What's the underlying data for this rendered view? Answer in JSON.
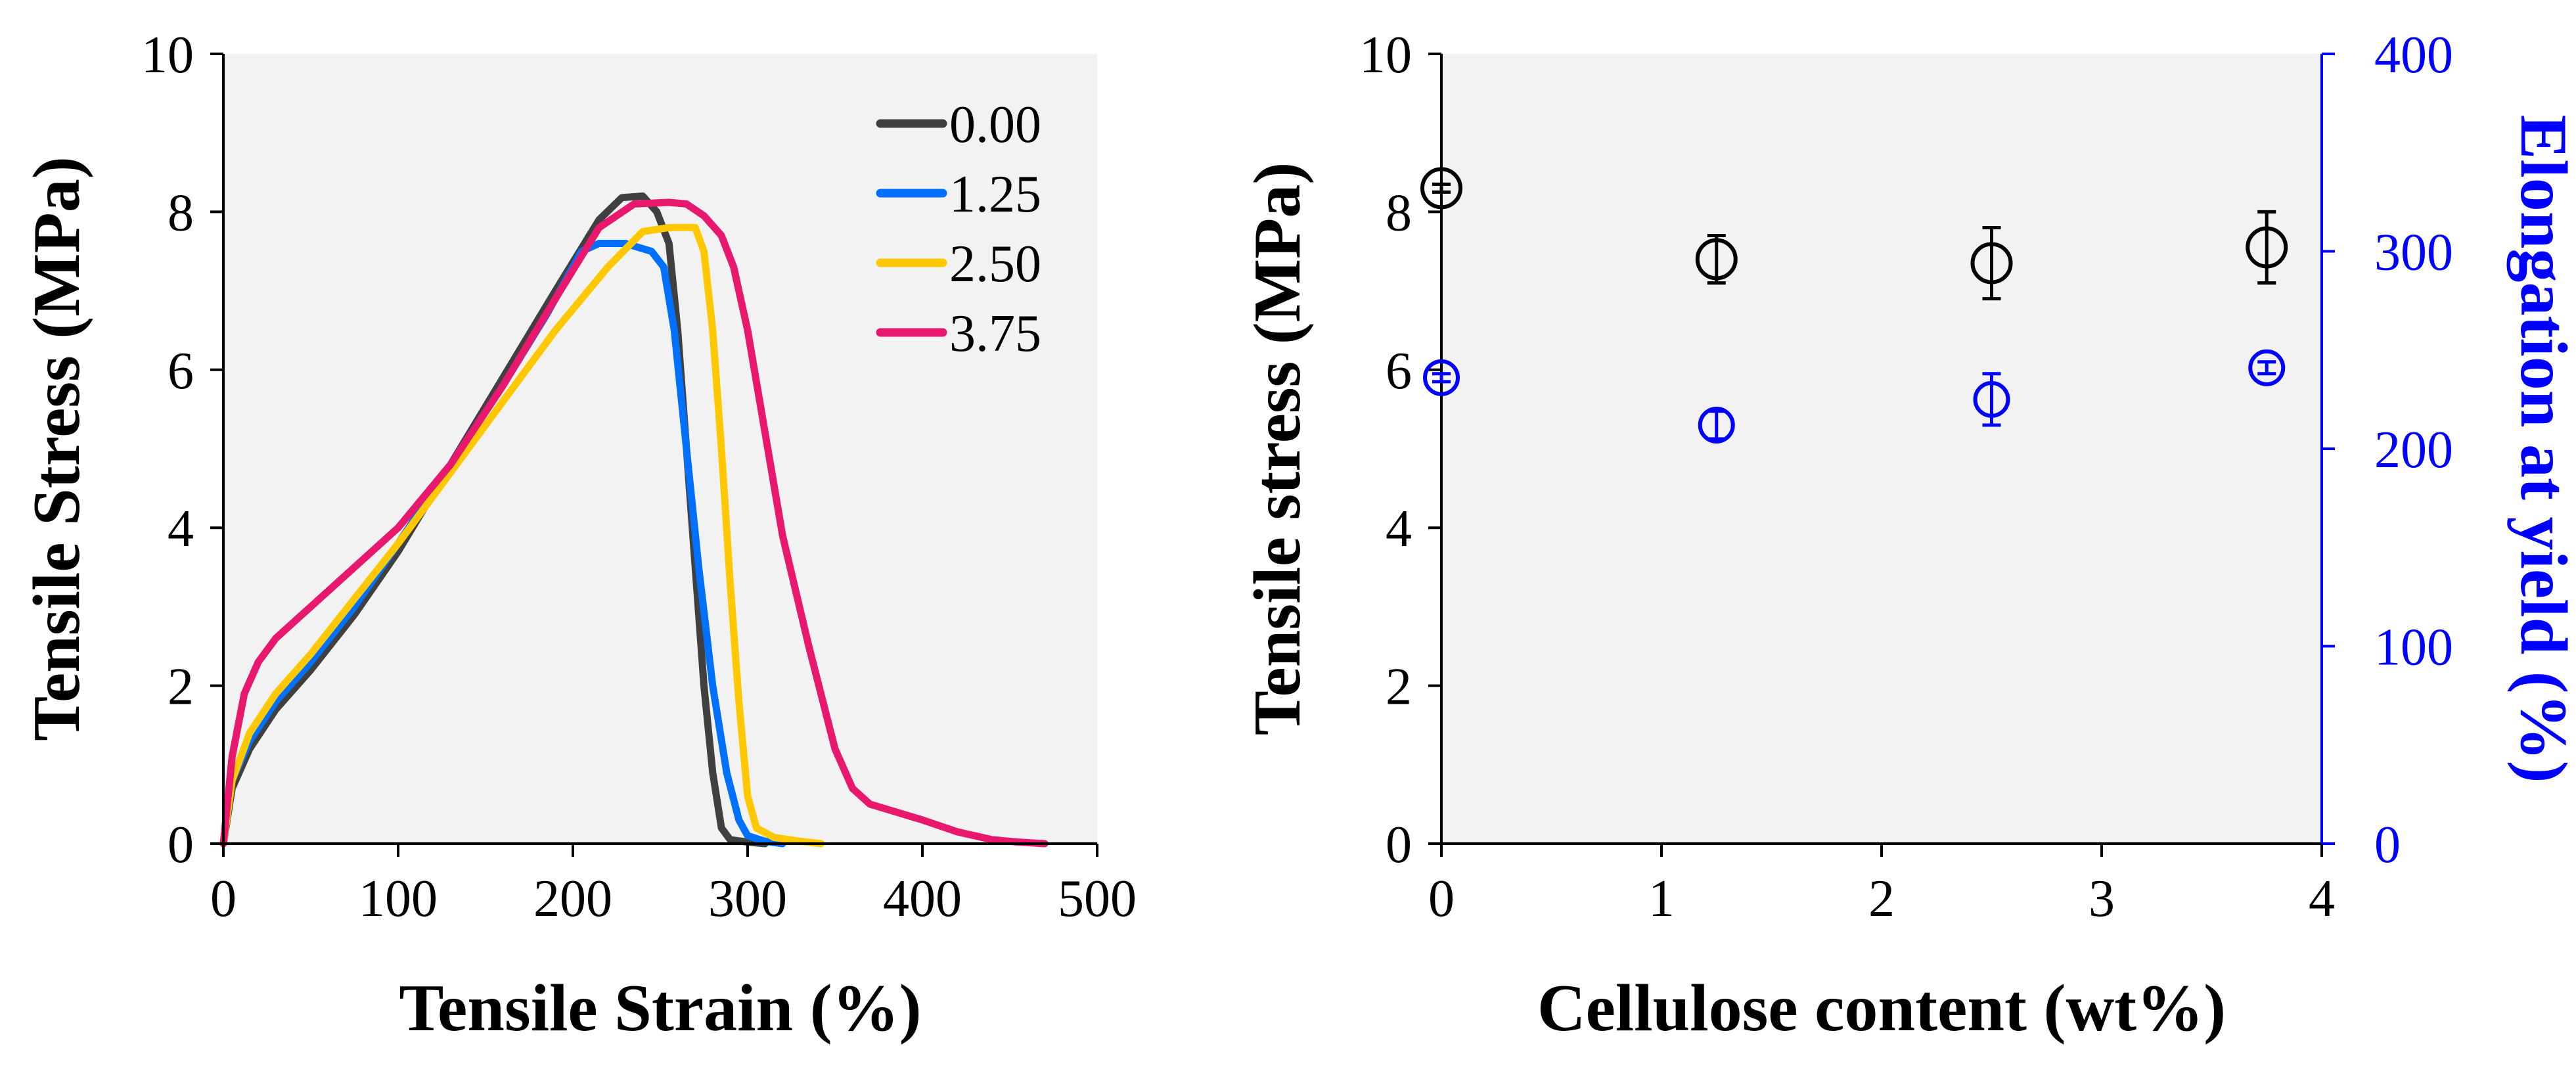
{
  "chart_data": [
    {
      "type": "line",
      "xlabel": "Tensile Strain (%)",
      "ylabel": "Tensile Stress (MPa)",
      "xlim": [
        0,
        500
      ],
      "ylim": [
        0,
        10
      ],
      "xticks": [
        "0",
        "100",
        "200",
        "300",
        "400",
        "500"
      ],
      "yticks": [
        "0",
        "2",
        "4",
        "6",
        "8",
        "10"
      ],
      "legend_title": "",
      "legend_position": "top-right",
      "grid": false,
      "series": [
        {
          "name": "0.00",
          "color": "#404040",
          "x": [
            0,
            5,
            15,
            30,
            50,
            75,
            100,
            130,
            160,
            190,
            215,
            228,
            240,
            248,
            255,
            260,
            265,
            270,
            275,
            280,
            285,
            290,
            300,
            310
          ],
          "y": [
            0,
            0.7,
            1.2,
            1.7,
            2.2,
            2.9,
            3.7,
            4.8,
            5.9,
            7.0,
            7.9,
            8.18,
            8.2,
            8.0,
            7.6,
            6.5,
            5.0,
            3.5,
            2.0,
            0.9,
            0.2,
            0.05,
            0.02,
            0
          ]
        },
        {
          "name": "1.25",
          "color": "#0070ff",
          "x": [
            0,
            5,
            15,
            30,
            50,
            75,
            100,
            130,
            160,
            185,
            205,
            215,
            230,
            245,
            252,
            258,
            265,
            272,
            280,
            288,
            295,
            300,
            310,
            320
          ],
          "y": [
            0,
            0.8,
            1.3,
            1.8,
            2.3,
            3.0,
            3.8,
            4.8,
            5.8,
            6.7,
            7.5,
            7.6,
            7.6,
            7.5,
            7.3,
            6.5,
            5.0,
            3.5,
            2.0,
            0.9,
            0.3,
            0.1,
            0.03,
            0
          ]
        },
        {
          "name": "2.50",
          "color": "#ffc800",
          "x": [
            0,
            5,
            15,
            30,
            50,
            75,
            100,
            130,
            160,
            190,
            220,
            240,
            255,
            270,
            275,
            280,
            285,
            290,
            295,
            300,
            305,
            315,
            330,
            342
          ],
          "y": [
            0,
            0.8,
            1.4,
            1.9,
            2.4,
            3.1,
            3.8,
            4.7,
            5.6,
            6.5,
            7.3,
            7.75,
            7.8,
            7.8,
            7.5,
            6.5,
            5.0,
            3.3,
            1.8,
            0.6,
            0.2,
            0.08,
            0.03,
            0
          ]
        },
        {
          "name": "3.75",
          "color": "#e8186e",
          "x": [
            0,
            5,
            12,
            20,
            30,
            45,
            60,
            80,
            100,
            130,
            160,
            190,
            215,
            235,
            255,
            265,
            275,
            285,
            292,
            300,
            310,
            320,
            335,
            350,
            360,
            370,
            385,
            400,
            420,
            440,
            455,
            470
          ],
          "y": [
            0,
            1.1,
            1.9,
            2.3,
            2.6,
            2.9,
            3.2,
            3.6,
            4.0,
            4.8,
            5.8,
            6.9,
            7.8,
            8.1,
            8.12,
            8.1,
            7.95,
            7.7,
            7.3,
            6.5,
            5.2,
            3.9,
            2.5,
            1.2,
            0.7,
            0.5,
            0.4,
            0.3,
            0.15,
            0.05,
            0.02,
            0
          ]
        }
      ]
    },
    {
      "type": "scatter",
      "xlabel": "Cellulose content (wt%)",
      "ylabel": "Tensile stress (MPa)",
      "y2label": "Elongation at yield (%)",
      "xlim": [
        0,
        4
      ],
      "ylim": [
        0,
        10
      ],
      "y2lim": [
        0,
        400
      ],
      "xticks": [
        "0",
        "1",
        "2",
        "3",
        "4"
      ],
      "yticks": [
        "0",
        "2",
        "4",
        "6",
        "8",
        "10"
      ],
      "y2ticks": [
        "0",
        "100",
        "200",
        "300",
        "400"
      ],
      "grid": false,
      "series": [
        {
          "name": "Tensile stress",
          "axis": "left",
          "color": "#000000",
          "x": [
            0,
            1.25,
            2.5,
            3.75
          ],
          "y": [
            8.3,
            7.4,
            7.35,
            7.55
          ],
          "err": [
            0.05,
            0.3,
            0.45,
            0.45
          ]
        },
        {
          "name": "Elongation at yield",
          "axis": "right",
          "color": "#0000ff",
          "x": [
            0,
            1.25,
            2.5,
            3.75
          ],
          "y": [
            236,
            212,
            225,
            241
          ],
          "err": [
            2,
            7,
            13,
            3
          ]
        }
      ]
    }
  ]
}
